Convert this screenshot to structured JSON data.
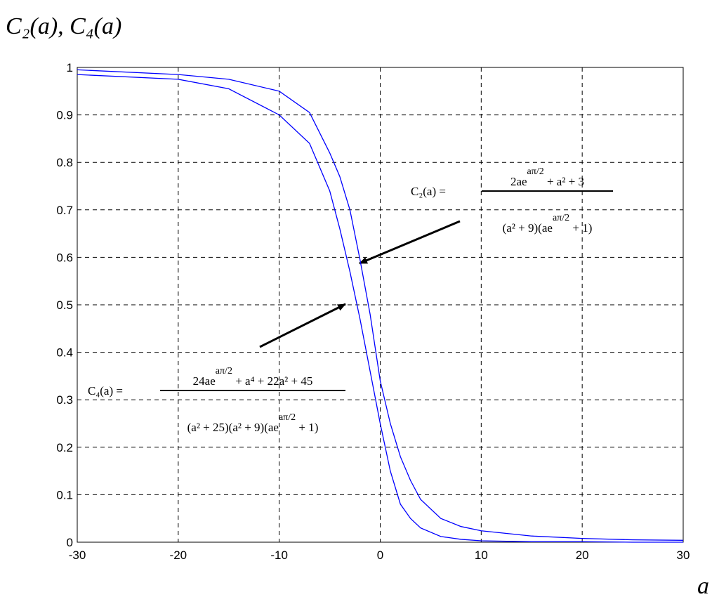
{
  "chart_data": {
    "type": "line",
    "title": "C₂(a), C₄(a)",
    "x_label": "a",
    "x": [
      -30,
      -20,
      -15,
      -10,
      -7,
      -5,
      -4,
      -3,
      -2,
      -1,
      0,
      1,
      2,
      3,
      4,
      6,
      8,
      10,
      15,
      20,
      25,
      30
    ],
    "series": [
      {
        "color": "#0000ff",
        "values": [
          0.995,
          0.985,
          0.975,
          0.95,
          0.905,
          0.82,
          0.77,
          0.7,
          0.595,
          0.48,
          0.34,
          0.25,
          0.18,
          0.13,
          0.09,
          0.05,
          0.033,
          0.024,
          0.013,
          0.008,
          0.005,
          0.004
        ]
      },
      {
        "color": "#0000ff",
        "values": [
          0.985,
          0.975,
          0.955,
          0.9,
          0.84,
          0.74,
          0.66,
          0.57,
          0.47,
          0.36,
          0.25,
          0.15,
          0.08,
          0.05,
          0.03,
          0.012,
          0.006,
          0.003,
          0.001,
          0.001,
          0,
          0
        ]
      }
    ],
    "xlim": [
      -30,
      30
    ],
    "ylim": [
      0,
      1
    ],
    "xticks": [
      -30,
      -20,
      -10,
      0,
      10,
      20,
      30
    ],
    "yticks": [
      0,
      0.1,
      0.2,
      0.3,
      0.4,
      0.5,
      0.6,
      0.7,
      0.8,
      0.9,
      1
    ],
    "grid": true,
    "annotations": [
      {
        "lhs": "C₂(a) =",
        "numerator": [
          "2ae",
          "aπ/2",
          " + a² + 3"
        ],
        "denominator": [
          "(a² + 9)(ae",
          "aπ/2",
          " + 1)"
        ]
      },
      {
        "lhs": "C₄(a) =",
        "numerator": [
          "24ae",
          "aπ/2",
          " + a⁴ + 22a² + 45"
        ],
        "denominator": [
          "(a² + 25)(a² + 9)(ae",
          "aπ/2",
          " + 1)"
        ]
      }
    ]
  }
}
